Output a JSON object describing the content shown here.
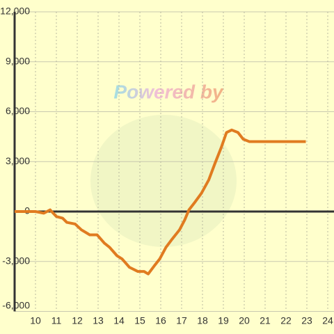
{
  "chart_data": {
    "type": "line",
    "annotation": "Powered by",
    "x": [
      9.0,
      10.0,
      10.4,
      10.7,
      11.0,
      11.3,
      11.5,
      11.9,
      12.2,
      12.6,
      12.95,
      13.3,
      13.55,
      13.9,
      14.15,
      14.5,
      14.9,
      15.2,
      15.4,
      15.7,
      15.95,
      16.25,
      16.55,
      16.9,
      17.15,
      17.35,
      17.6,
      17.95,
      18.3,
      18.6,
      18.9,
      19.15,
      19.4,
      19.7,
      19.95,
      20.25,
      22.95
    ],
    "series": [
      {
        "color": "#e07b20",
        "values": [
          0,
          0,
          -100,
          100,
          -300,
          -400,
          -650,
          -750,
          -1100,
          -1400,
          -1400,
          -1900,
          -2150,
          -2650,
          -2850,
          -3350,
          -3600,
          -3600,
          -3750,
          -3250,
          -2850,
          -2150,
          -1650,
          -1100,
          -500,
          100,
          500,
          1100,
          1900,
          2900,
          3850,
          4750,
          4900,
          4750,
          4350,
          4200,
          4200
        ]
      }
    ],
    "xlim": [
      9,
      24.3
    ],
    "xticks": [
      10,
      11,
      12,
      13,
      14,
      15,
      16,
      17,
      18,
      19,
      20,
      21,
      22,
      23,
      24
    ],
    "ylim": [
      -6000,
      12000
    ],
    "yticks": [
      {
        "value": -6000,
        "label": "-6,000"
      },
      {
        "value": -3000,
        "label": "-3,000"
      },
      0,
      {
        "value": 3000,
        "label": "3,000"
      },
      {
        "value": 6000,
        "label": "6,000"
      },
      {
        "value": 9000,
        "label": "9,000"
      },
      {
        "value": 12000,
        "label": "12,000"
      }
    ],
    "grid": true
  }
}
